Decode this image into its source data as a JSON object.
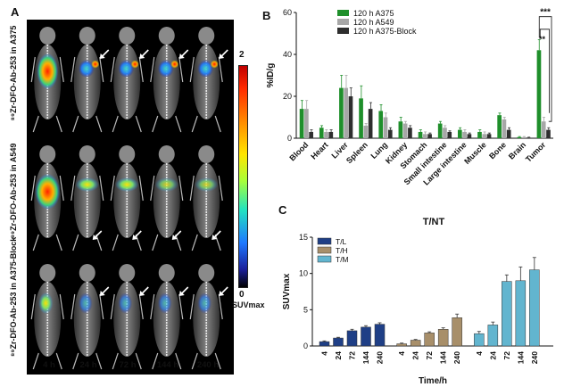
{
  "panel_a": {
    "letter": "A",
    "rows": [
      {
        "label": "⁸⁹Zr-DFO-Ab-253 in A375"
      },
      {
        "label": "⁸⁹Zr-DFO-Ab-253 in A549"
      },
      {
        "label": "⁸⁹Zr-DFO-Ab-253 in A375-Block"
      }
    ],
    "timepoints": [
      "4 h",
      "24 h",
      "72 h",
      "144 h",
      "240 h"
    ],
    "colorbar": {
      "max": "2",
      "min": "0",
      "unit": "SUVmax"
    },
    "colors": {
      "background": "#000000",
      "arrow": "#ffffff"
    }
  },
  "chart_data": [
    {
      "panel": "B",
      "type": "bar",
      "ylabel": "%ID/g",
      "ylim": [
        0,
        60
      ],
      "yticks": [
        0,
        20,
        40,
        60
      ],
      "categories": [
        "Blood",
        "Heart",
        "Liver",
        "Spleen",
        "Lung",
        "Kidney",
        "Stomach",
        "Small intestine",
        "Large intestine",
        "Muscle",
        "Bone",
        "Brain",
        "Tumor"
      ],
      "series": [
        {
          "name": "120 h A375",
          "color": "#1f8f2b",
          "values": [
            14,
            5,
            24,
            19,
            13,
            8,
            3,
            7,
            4,
            3,
            11,
            0.5,
            42
          ],
          "errors": [
            4,
            1,
            6,
            6,
            3,
            2,
            1,
            1,
            1,
            1,
            1,
            0.3,
            5
          ]
        },
        {
          "name": "120 h A549",
          "color": "#a7a7a7",
          "values": [
            14,
            3,
            24,
            6,
            10,
            7,
            2,
            5,
            3,
            2,
            9,
            0.5,
            8
          ],
          "errors": [
            4,
            1,
            6,
            1,
            2,
            1,
            1,
            1,
            1,
            1,
            1,
            0.3,
            2
          ]
        },
        {
          "name": "120 h A375-Block",
          "color": "#2e2e2e",
          "values": [
            3,
            3,
            20,
            14,
            4,
            5,
            2,
            3,
            2,
            2,
            4,
            0.3,
            4
          ],
          "errors": [
            1,
            1,
            4,
            3,
            1,
            1,
            0.5,
            0.5,
            0.5,
            0.5,
            1,
            0.2,
            1
          ]
        }
      ],
      "annotations": [
        "***",
        "**"
      ]
    },
    {
      "panel": "C",
      "type": "bar",
      "title": "T/NT",
      "ylabel": "SUVmax",
      "xlabel": "Time/h",
      "ylim": [
        0,
        15
      ],
      "yticks": [
        0,
        5,
        10,
        15
      ],
      "x": [
        "4",
        "24",
        "72",
        "144",
        "240"
      ],
      "series": [
        {
          "name": "T/L",
          "color": "#1f3f86",
          "values": [
            0.6,
            1.1,
            2.1,
            2.6,
            3.0
          ],
          "errors": [
            0.1,
            0.1,
            0.2,
            0.2,
            0.2
          ]
        },
        {
          "name": "T/H",
          "color": "#a88f6a",
          "values": [
            0.3,
            0.8,
            1.8,
            2.3,
            3.9
          ],
          "errors": [
            0.1,
            0.1,
            0.15,
            0.2,
            0.5
          ]
        },
        {
          "name": "T/M",
          "color": "#62b5cf",
          "values": [
            1.7,
            2.9,
            8.9,
            9.0,
            10.5
          ],
          "errors": [
            0.3,
            0.4,
            0.9,
            1.9,
            1.7
          ]
        }
      ]
    }
  ]
}
